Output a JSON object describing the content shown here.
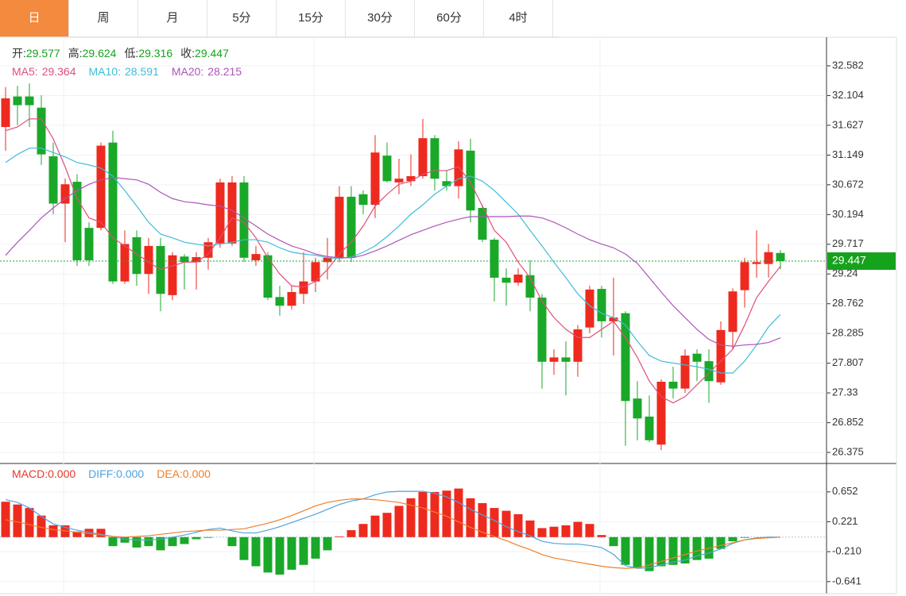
{
  "tabs": [
    "日",
    "周",
    "月",
    "5分",
    "15分",
    "30分",
    "60分",
    "4时"
  ],
  "selected_tab": 0,
  "chart_data": [
    {
      "type": "candlestick",
      "up_color": "#ee2a1e",
      "down_color": "#1aa829",
      "value_color": "#15a21c",
      "ohlc_labels": [
        "开:",
        "高:",
        "低:",
        "收:"
      ],
      "open": [
        31.6,
        32.09,
        32.09,
        31.91,
        31.13,
        30.37,
        30.72,
        29.98,
        29.98,
        31.35,
        29.12,
        29.83,
        29.24,
        29.69,
        28.9,
        29.52,
        29.43,
        29.5,
        29.73,
        29.73,
        30.71,
        29.46,
        29.54,
        28.87,
        28.73,
        28.92,
        29.12,
        29.43,
        29.5,
        30.48,
        30.52,
        30.35,
        31.14,
        30.71,
        30.73,
        30.81,
        31.42,
        30.73,
        30.65,
        31.22,
        30.3,
        29.79,
        29.18,
        29.1,
        29.22,
        28.86,
        27.83,
        27.9,
        27.83,
        28.38,
        29.0,
        28.48,
        28.61,
        27.24,
        26.95,
        26.5,
        27.51,
        27.4,
        27.96,
        27.84,
        27.5,
        28.31,
        28.98,
        29.4,
        29.4,
        29.577
      ],
      "high": [
        32.24,
        32.26,
        32.3,
        32.11,
        31.35,
        30.77,
        30.84,
        30.07,
        31.35,
        31.54,
        29.94,
        29.94,
        29.82,
        29.82,
        29.59,
        29.56,
        29.59,
        29.82,
        30.77,
        30.81,
        30.81,
        29.69,
        29.59,
        29.05,
        29.05,
        29.59,
        29.5,
        29.82,
        30.65,
        30.65,
        30.58,
        31.47,
        31.35,
        31.09,
        31.16,
        31.73,
        31.47,
        30.9,
        31.37,
        31.41,
        30.35,
        29.82,
        29.33,
        29.33,
        29.46,
        28.92,
        28.03,
        28.16,
        28.42,
        29.05,
        29.05,
        29.18,
        28.64,
        27.52,
        27.29,
        27.55,
        27.75,
        28.03,
        28.03,
        28.03,
        28.48,
        29.01,
        29.5,
        29.94,
        29.72,
        29.624
      ],
      "low": [
        31.22,
        31.63,
        31.6,
        30.99,
        30.2,
        29.75,
        29.37,
        29.37,
        29.94,
        29.08,
        29.08,
        29.05,
        28.92,
        28.64,
        28.82,
        28.99,
        28.99,
        29.31,
        29.66,
        29.69,
        29.43,
        29.37,
        28.82,
        28.57,
        28.67,
        28.76,
        28.95,
        29.15,
        29.43,
        29.43,
        30.2,
        30.14,
        30.71,
        30.52,
        30.65,
        30.77,
        30.58,
        30.58,
        30.45,
        30.07,
        29.75,
        28.8,
        28.73,
        29.05,
        28.64,
        27.4,
        27.62,
        27.29,
        27.59,
        28.29,
        28.22,
        27.93,
        26.48,
        26.57,
        26.54,
        26.41,
        27.24,
        27.33,
        27.52,
        27.17,
        27.46,
        28.03,
        28.7,
        29.18,
        29.18,
        29.316
      ],
      "close": [
        32.06,
        31.95,
        31.95,
        31.16,
        30.37,
        30.68,
        29.46,
        29.46,
        31.3,
        29.12,
        29.72,
        29.24,
        29.69,
        28.92,
        29.54,
        29.43,
        29.51,
        29.75,
        30.71,
        30.71,
        29.5,
        29.56,
        28.86,
        28.73,
        28.95,
        29.12,
        29.43,
        29.5,
        30.48,
        29.5,
        30.35,
        31.19,
        30.73,
        30.77,
        30.81,
        31.42,
        30.77,
        30.65,
        31.24,
        30.26,
        29.79,
        29.18,
        29.1,
        29.23,
        28.86,
        27.83,
        27.9,
        27.83,
        28.35,
        28.99,
        28.48,
        28.54,
        27.2,
        26.92,
        26.57,
        27.51,
        27.4,
        27.93,
        27.83,
        27.52,
        28.34,
        28.96,
        29.43,
        29.43,
        29.59,
        29.447
      ],
      "ma": [
        {
          "name": "MA5:",
          "color": "#de4f7a",
          "values": [
            31.54,
            31.6,
            31.73,
            31.73,
            31.41,
            30.96,
            30.45,
            30.14,
            30.07,
            29.82,
            29.69,
            29.56,
            29.43,
            29.31,
            29.37,
            29.43,
            29.43,
            29.56,
            29.82,
            30.14,
            30.07,
            29.82,
            29.5,
            29.24,
            29.05,
            29.03,
            29.12,
            29.31,
            29.56,
            29.75,
            30.01,
            30.33,
            30.52,
            30.68,
            30.73,
            30.84,
            30.9,
            30.9,
            30.96,
            30.71,
            30.33,
            29.94,
            29.75,
            29.43,
            29.18,
            28.8,
            28.54,
            28.35,
            28.22,
            28.22,
            28.35,
            28.48,
            28.22,
            27.9,
            27.52,
            27.27,
            27.17,
            27.27,
            27.46,
            27.65,
            27.84,
            28.03,
            28.42,
            28.86,
            29.12,
            29.364
          ]
        },
        {
          "name": "MA10:",
          "color": "#41bcd6",
          "values": [
            31.03,
            31.16,
            31.26,
            31.26,
            31.19,
            31.12,
            31.03,
            30.99,
            30.94,
            30.81,
            30.58,
            30.33,
            30.07,
            29.88,
            29.82,
            29.75,
            29.72,
            29.69,
            29.72,
            29.75,
            29.79,
            29.79,
            29.75,
            29.66,
            29.59,
            29.56,
            29.54,
            29.5,
            29.49,
            29.51,
            29.59,
            29.69,
            29.84,
            30.01,
            30.2,
            30.35,
            30.52,
            30.65,
            30.77,
            30.81,
            30.73,
            30.58,
            30.39,
            30.2,
            29.94,
            29.69,
            29.43,
            29.18,
            28.92,
            28.73,
            28.61,
            28.54,
            28.42,
            28.16,
            27.93,
            27.84,
            27.81,
            27.78,
            27.75,
            27.71,
            27.65,
            27.65,
            27.84,
            28.1,
            28.39,
            28.591
          ]
        },
        {
          "name": "MA20:",
          "color": "#ae55b8",
          "values": [
            29.54,
            29.75,
            29.94,
            30.14,
            30.3,
            30.45,
            30.58,
            30.68,
            30.75,
            30.79,
            30.77,
            30.75,
            30.68,
            30.55,
            30.45,
            30.4,
            30.38,
            30.35,
            30.33,
            30.26,
            30.14,
            30.01,
            29.88,
            29.78,
            29.69,
            29.63,
            29.56,
            29.52,
            29.5,
            29.5,
            29.54,
            29.61,
            29.69,
            29.78,
            29.87,
            29.94,
            30.01,
            30.07,
            30.12,
            30.16,
            30.16,
            30.16,
            30.16,
            30.17,
            30.17,
            30.14,
            30.07,
            29.98,
            29.88,
            29.79,
            29.72,
            29.66,
            29.56,
            29.41,
            29.18,
            28.95,
            28.73,
            28.54,
            28.35,
            28.19,
            28.1,
            28.08,
            28.1,
            28.11,
            28.14,
            28.215
          ]
        }
      ],
      "ylim": [
        26.21,
        33.04
      ],
      "yticks": [
        32.582,
        32.104,
        31.627,
        31.149,
        30.672,
        30.194,
        29.717,
        29.24,
        28.762,
        28.285,
        27.807,
        27.33,
        26.852,
        26.375
      ],
      "grid": true
    },
    {
      "type": "macd",
      "up_color": "#ee2a1e",
      "down_color": "#1aa829",
      "series": [
        {
          "name": "MACD:",
          "legend_label": "0.000",
          "color": "#e8372b",
          "values": [
            0.51,
            0.47,
            0.42,
            0.31,
            0.17,
            0.17,
            0.08,
            0.12,
            0.12,
            -0.13,
            -0.08,
            -0.15,
            -0.13,
            -0.19,
            -0.13,
            -0.1,
            -0.03,
            -0.01,
            0.0,
            -0.13,
            -0.33,
            -0.42,
            -0.51,
            -0.54,
            -0.47,
            -0.4,
            -0.31,
            -0.19,
            0.01,
            0.1,
            0.19,
            0.31,
            0.35,
            0.45,
            0.56,
            0.65,
            0.65,
            0.67,
            0.7,
            0.56,
            0.49,
            0.42,
            0.38,
            0.33,
            0.24,
            0.13,
            0.15,
            0.17,
            0.22,
            0.19,
            0.03,
            -0.13,
            -0.4,
            -0.45,
            -0.49,
            -0.42,
            -0.4,
            -0.38,
            -0.33,
            -0.31,
            -0.17,
            -0.06,
            -0.01,
            0,
            0,
            0
          ]
        },
        {
          "name": "DIFF:",
          "legend_label": "0.000",
          "color": "#4fa3df",
          "values": [
            0.54,
            0.5,
            0.42,
            0.3,
            0.19,
            0.14,
            0.1,
            0.07,
            0.04,
            0.01,
            -0.03,
            -0.04,
            -0.04,
            -0.03,
            0.0,
            0.03,
            0.07,
            0.11,
            0.13,
            0.09,
            0.06,
            0.06,
            0.1,
            0.15,
            0.21,
            0.27,
            0.33,
            0.4,
            0.47,
            0.52,
            0.55,
            0.61,
            0.65,
            0.66,
            0.66,
            0.66,
            0.63,
            0.58,
            0.5,
            0.4,
            0.32,
            0.24,
            0.15,
            0.08,
            0.02,
            -0.06,
            -0.09,
            -0.1,
            -0.1,
            -0.12,
            -0.15,
            -0.25,
            -0.41,
            -0.45,
            -0.44,
            -0.4,
            -0.36,
            -0.33,
            -0.27,
            -0.23,
            -0.17,
            -0.09,
            -0.04,
            -0.01,
            0.0,
            0.0
          ]
        },
        {
          "name": "DEA:",
          "legend_label": "0.000",
          "color": "#ee7f2a",
          "values": [
            0.25,
            0.22,
            0.18,
            0.14,
            0.11,
            0.09,
            0.07,
            0.05,
            0.03,
            0.01,
            0.0,
            0.01,
            0.02,
            0.04,
            0.06,
            0.08,
            0.09,
            0.1,
            0.1,
            0.11,
            0.12,
            0.16,
            0.2,
            0.25,
            0.31,
            0.38,
            0.45,
            0.5,
            0.53,
            0.55,
            0.55,
            0.54,
            0.52,
            0.5,
            0.46,
            0.42,
            0.36,
            0.3,
            0.22,
            0.14,
            0.07,
            0.01,
            -0.05,
            -0.12,
            -0.18,
            -0.25,
            -0.3,
            -0.33,
            -0.36,
            -0.39,
            -0.42,
            -0.44,
            -0.45,
            -0.44,
            -0.4,
            -0.35,
            -0.3,
            -0.25,
            -0.2,
            -0.16,
            -0.12,
            -0.08,
            -0.04,
            -0.02,
            -0.01,
            0.0
          ]
        }
      ],
      "ylim": [
        -0.78,
        1.05
      ],
      "yticks": [
        0.652,
        0.221,
        {
          "value": -0.21,
          "label": "-0.210"
        },
        -0.641
      ],
      "grid": true
    }
  ]
}
